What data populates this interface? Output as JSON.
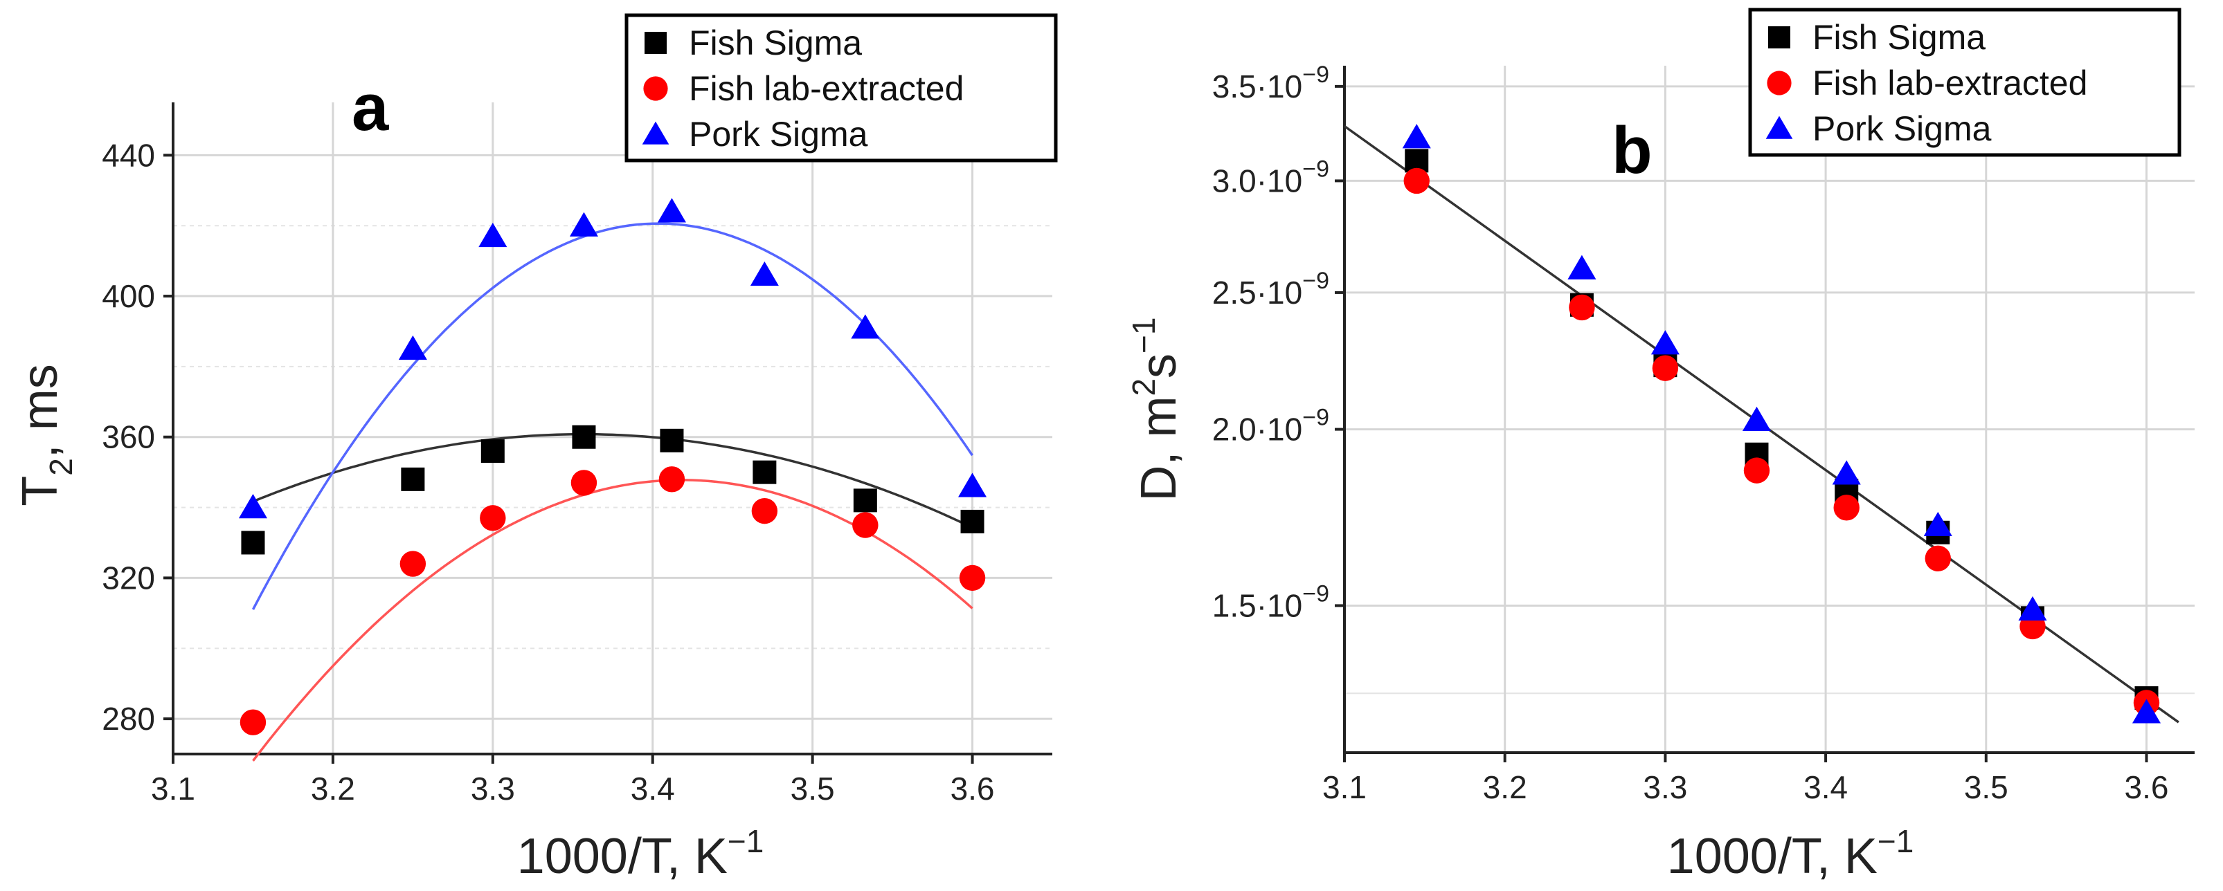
{
  "chart_data": [
    {
      "type": "scatter",
      "panel_label": "a",
      "xlabel": "1000/T,  K",
      "xlabel_sup": "−1",
      "ylabel_main": "T",
      "ylabel_sub": "2",
      "ylabel_rest": ", ms",
      "xlim": [
        3.1,
        3.65
      ],
      "ylim": [
        270,
        455
      ],
      "xticks": [
        3.1,
        3.2,
        3.3,
        3.4,
        3.5,
        3.6
      ],
      "xtick_labels": [
        "3.1",
        "3.2",
        "3.3",
        "3.4",
        "3.5",
        "3.6"
      ],
      "yticks": [
        280,
        320,
        360,
        400,
        440
      ],
      "ytick_labels": [
        "280",
        "320",
        "360",
        "400",
        "440"
      ],
      "grid": true,
      "legend_position": "top-right",
      "series": [
        {
          "name": "Fish Sigma",
          "marker": "square",
          "color": "#000000",
          "line_color": "#333333",
          "x": [
            3.15,
            3.25,
            3.3,
            3.357,
            3.412,
            3.47,
            3.533,
            3.6
          ],
          "y": [
            330,
            348,
            356,
            360,
            359,
            350,
            342,
            336
          ],
          "fit": [
            -447.4,
            3003.5,
            -4680.0
          ]
        },
        {
          "name": "Fish lab-extracted",
          "marker": "circle",
          "color": "#ff0000",
          "line_color": "#ff5555",
          "x": [
            3.15,
            3.25,
            3.3,
            3.357,
            3.412,
            3.47,
            3.533,
            3.6
          ],
          "y": [
            279,
            324,
            337,
            347,
            348,
            339,
            335,
            320
          ],
          "fit": [
            -1106.0,
            7561.7,
            -12577.0
          ]
        },
        {
          "name": "Pork Sigma",
          "marker": "triangle",
          "color": "#0000ff",
          "line_color": "#5566ff",
          "x": [
            3.15,
            3.25,
            3.3,
            3.357,
            3.412,
            3.47,
            3.533,
            3.6
          ],
          "y": [
            340,
            385,
            417,
            420,
            424,
            406,
            391,
            346
          ],
          "fit": [
            -1705.0,
            11606.0,
            -19330.0
          ]
        }
      ]
    },
    {
      "type": "scatter",
      "panel_label": "b",
      "yscale": "log",
      "xlabel": "1000/T,  K",
      "xlabel_sup": "−1",
      "ylabel_main": "D, m",
      "ylabel_sup1": "2",
      "ylabel_mid": "s",
      "ylabel_sup2": "−1",
      "xlim": [
        3.1,
        3.63
      ],
      "ylim": [
        1.18e-09,
        3.62e-09
      ],
      "xticks": [
        3.1,
        3.2,
        3.3,
        3.4,
        3.5,
        3.6
      ],
      "xtick_labels": [
        "3.1",
        "3.2",
        "3.3",
        "3.4",
        "3.5",
        "3.6"
      ],
      "yticks": [
        1.5e-09,
        2e-09,
        2.5e-09,
        3e-09,
        3.5e-09
      ],
      "ytick_mantissa": [
        "1.5·10",
        "2.0·10",
        "2.5·10",
        "3.0·10",
        "3.5·10"
      ],
      "ytick_exponent": "−9",
      "grid": true,
      "legend_position": "top-right",
      "fit_line": {
        "type": "exponential",
        "x": [
          3.1,
          3.62
        ],
        "y": [
          3.28e-09,
          1.24e-09
        ],
        "color": "#333333"
      },
      "series": [
        {
          "name": "Fish Sigma",
          "marker": "square",
          "color": "#000000",
          "x": [
            3.145,
            3.248,
            3.3,
            3.357,
            3.413,
            3.47,
            3.529,
            3.6
          ],
          "y": [
            3.1e-09,
            2.45e-09,
            2.22e-09,
            1.92e-09,
            1.81e-09,
            1.69e-09,
            1.47e-09,
            1.29e-09
          ]
        },
        {
          "name": "Fish lab-extracted",
          "marker": "circle",
          "color": "#ff0000",
          "x": [
            3.145,
            3.248,
            3.3,
            3.357,
            3.413,
            3.47,
            3.529,
            3.6
          ],
          "y": [
            3e-09,
            2.44e-09,
            2.21e-09,
            1.87e-09,
            1.76e-09,
            1.62e-09,
            1.45e-09,
            1.28e-09
          ]
        },
        {
          "name": "Pork Sigma",
          "marker": "triangle",
          "color": "#0000ff",
          "x": [
            3.145,
            3.248,
            3.3,
            3.357,
            3.413,
            3.47,
            3.529,
            3.6
          ],
          "y": [
            3.22e-09,
            2.6e-09,
            2.3e-09,
            2.03e-09,
            1.86e-09,
            1.71e-09,
            1.49e-09,
            1.26e-09
          ]
        }
      ]
    }
  ]
}
